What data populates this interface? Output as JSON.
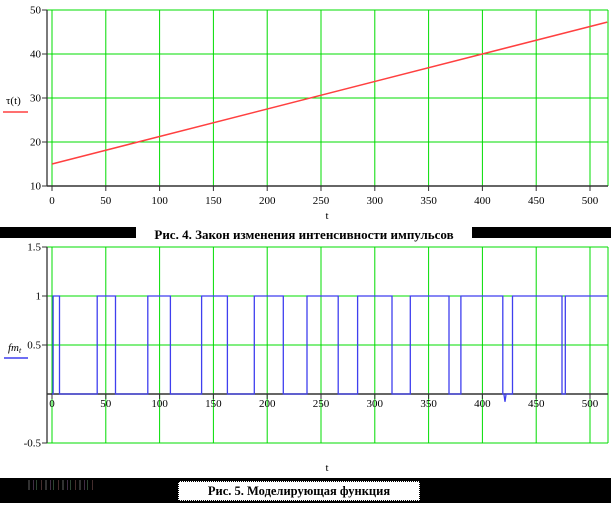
{
  "figure4": {
    "y_axis_label": "τ(t)",
    "x_axis_label": "t",
    "caption": "Рис. 4. Закон изменения интенсивности импульсов",
    "colors": {
      "line": "#ff4040",
      "grid": "#00dc00",
      "axis": "#333333"
    },
    "x_ticks": [
      "0",
      "50",
      "100",
      "150",
      "200",
      "250",
      "300",
      "350",
      "400",
      "450",
      "500"
    ],
    "y_ticks": [
      "10",
      "20",
      "30",
      "40",
      "50"
    ]
  },
  "figure5": {
    "y_axis_label_main": "fm",
    "y_axis_label_sub": "t",
    "x_axis_label": "t",
    "caption": "Рис. 5. Моделирующая функция",
    "colors": {
      "line": "#3f3fef",
      "grid": "#00dc00",
      "axis": "#333333"
    },
    "x_ticks": [
      "0",
      "50",
      "100",
      "150",
      "200",
      "250",
      "300",
      "350",
      "400",
      "450",
      "500"
    ],
    "y_ticks": [
      "-0.5",
      "0.5",
      "1",
      "1.5"
    ]
  },
  "chart_data": [
    {
      "type": "line",
      "title": "Рис. 4. Закон изменения интенсивности импульсов",
      "xlabel": "t",
      "ylabel": "τ(t)",
      "xlim": [
        0,
        516
      ],
      "ylim": [
        10,
        50
      ],
      "x_ticks": [
        0,
        50,
        100,
        150,
        200,
        250,
        300,
        350,
        400,
        450,
        500
      ],
      "y_ticks": [
        10,
        20,
        30,
        40,
        50
      ],
      "grid": true,
      "legend_position": "left",
      "series": [
        {
          "name": "τ(t)",
          "color": "#ff4040",
          "x": [
            0,
            516
          ],
          "y": [
            15,
            47.25
          ]
        }
      ]
    },
    {
      "type": "line",
      "title": "Рис. 5. Моделирующая функция",
      "xlabel": "t",
      "ylabel": "fm_t",
      "xlim": [
        0,
        516
      ],
      "ylim": [
        -0.5,
        1.5
      ],
      "x_ticks": [
        0,
        50,
        100,
        150,
        200,
        250,
        300,
        350,
        400,
        450,
        500
      ],
      "y_ticks": [
        -0.5,
        0.5,
        1,
        1.5
      ],
      "grid": true,
      "legend_position": "left",
      "series": [
        {
          "name": "fm_t",
          "color": "#3f3fef",
          "wave_low": 0,
          "wave_high": 1,
          "high_intervals": [
            [
              1,
              7
            ],
            [
              42,
              59
            ],
            [
              89,
              110
            ],
            [
              139,
              163
            ],
            [
              188,
              215
            ],
            [
              237,
              266
            ],
            [
              284,
              316
            ],
            [
              333,
              369
            ],
            [
              380,
              419
            ],
            [
              428,
              474
            ],
            [
              477,
              516
            ]
          ],
          "glitch": {
            "t": 421,
            "value": -0.08
          }
        }
      ]
    }
  ]
}
